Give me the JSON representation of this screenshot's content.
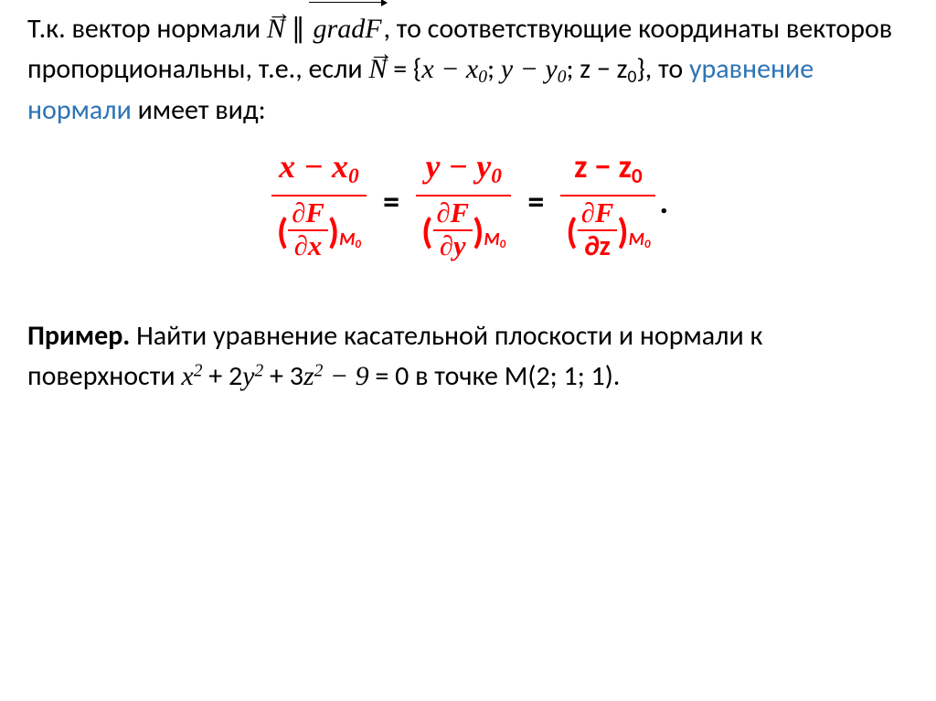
{
  "p1": {
    "t1": "Т.к. вектор нормали ",
    "N": "N",
    "par": "∥",
    "grad": "gradF",
    "t2": ", то соответствующие координаты векторов пропорциональны, т.е., если ",
    "eq_open": " = {",
    "xx0": "x − x",
    "sep": "; ",
    "yy0": "y − y",
    "zz0": "z − z",
    "close": "}",
    "t3": ", то ",
    "blue": "уравнение нормали",
    "t4": " имеет вид:",
    "zero": "0"
  },
  "eq": {
    "x": "x − x",
    "y": "y − y",
    "z": "z − z",
    "zero": "0",
    "dF": "∂F",
    "dx": "∂x",
    "dy": "∂y",
    "dz": "∂z",
    "M0": "M",
    "lp": "(",
    "rp": ")",
    "equals": "=",
    "period": "."
  },
  "ex": {
    "label": "Пример.",
    "t1": " Найти уравнение касательной плоскости и нормали к поверхности ",
    "expr_x": "x",
    "plus1": " + 2",
    "expr_y": "y",
    "plus2": " + 3",
    "expr_z": "z",
    "minus9": " − 9",
    "eq0": " = 0 в точке М(2; 1; 1).",
    "sq": "2"
  },
  "colors": {
    "text": "#000000",
    "blue": "#2e74b5",
    "red": "#ff0000",
    "bg": "#ffffff"
  }
}
